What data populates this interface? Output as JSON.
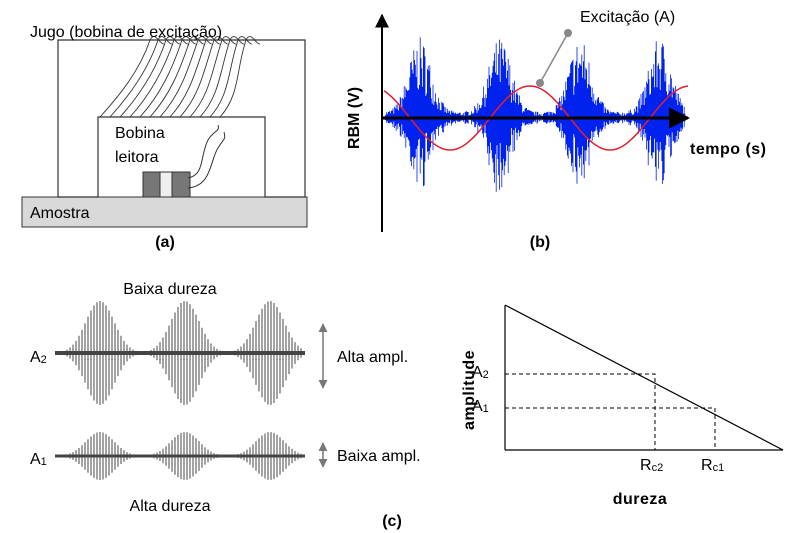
{
  "panel_a": {
    "yoke_label": "Jugo (bobina de excitação)",
    "coil_label": [
      "Bobina",
      "leitora"
    ],
    "sample_label": "Amostra",
    "caption": "(a)"
  },
  "panel_b": {
    "callout": "Excitação (A)",
    "y_axis_label": "RBM (V)",
    "x_axis_label": "tempo (s)",
    "caption": "(b)"
  },
  "panel_c": {
    "top_label": "Baixa dureza",
    "bottom_label": "Alta dureza",
    "levels": [
      {
        "base": "A",
        "sub": "2",
        "note": "Alta ampl."
      },
      {
        "base": "A",
        "sub": "1",
        "note": "Baixa ampl."
      }
    ],
    "caption": "(c)",
    "plot": {
      "y_axis_label": "amplitude",
      "x_axis_label": "dureza",
      "y_labels": [
        {
          "base": "A",
          "sub": "2"
        },
        {
          "base": "A",
          "sub": "1"
        }
      ],
      "x_labels": [
        {
          "base": "R",
          "sub": "c2"
        },
        {
          "base": "R",
          "sub": "c1"
        }
      ]
    }
  }
}
